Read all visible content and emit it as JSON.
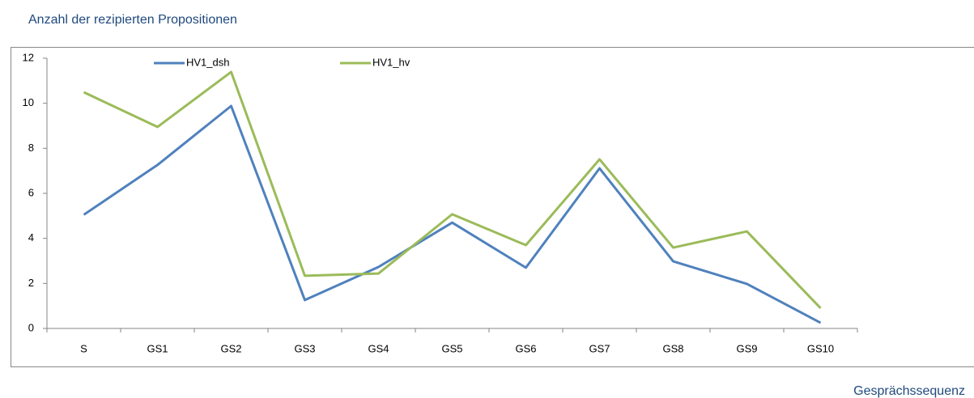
{
  "chart_data": {
    "type": "line",
    "title": "Anzahl der rezipierten Propositionen",
    "x_label": "Gesprächssequenz",
    "categories": [
      "S",
      "GS1",
      "GS2",
      "GS3",
      "GS4",
      "GS5",
      "GS6",
      "GS7",
      "GS8",
      "GS9",
      "GS10"
    ],
    "series": [
      {
        "name": "HV1_dsh",
        "color": "#4f81bd",
        "values": [
          5.05,
          7.26,
          9.88,
          1.26,
          2.73,
          4.7,
          2.7,
          7.11,
          2.98,
          1.98,
          0.25
        ]
      },
      {
        "name": "HV1_hv",
        "color": "#9bbb59",
        "values": [
          10.49,
          8.95,
          11.39,
          2.34,
          2.44,
          5.07,
          3.7,
          7.51,
          3.59,
          4.31,
          0.9
        ]
      }
    ],
    "ylim": [
      0,
      12
    ],
    "yticks": [
      0,
      2,
      4,
      6,
      8,
      10,
      12
    ],
    "grid": false,
    "legend": "top"
  }
}
